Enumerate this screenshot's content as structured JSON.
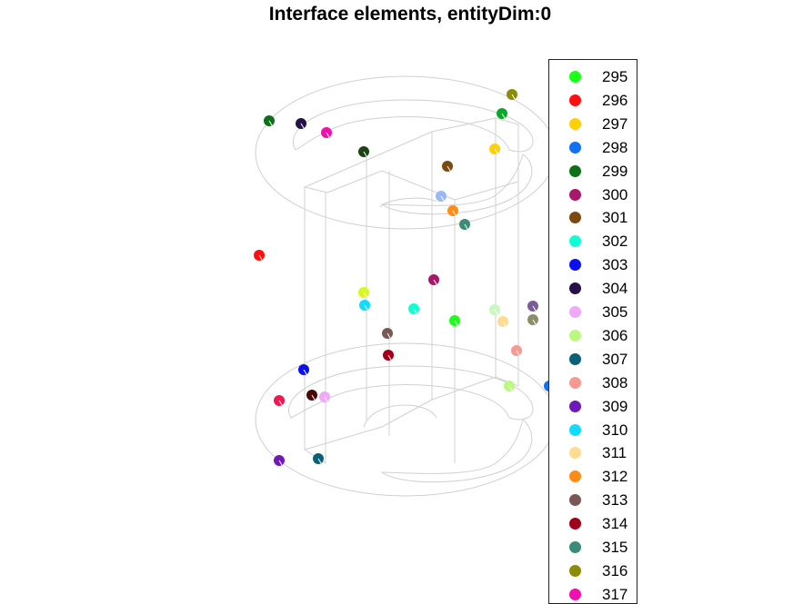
{
  "title": "Interface elements, entityDim:0",
  "legend": [
    {
      "label": "295",
      "color": "#19ff19"
    },
    {
      "label": "296",
      "color": "#ff1010"
    },
    {
      "label": "297",
      "color": "#ffd008"
    },
    {
      "label": "298",
      "color": "#1072f0"
    },
    {
      "label": "299",
      "color": "#0b7018"
    },
    {
      "label": "300",
      "color": "#a8186a"
    },
    {
      "label": "301",
      "color": "#7c4a0e"
    },
    {
      "label": "302",
      "color": "#10ffd2"
    },
    {
      "label": "303",
      "color": "#0a10f0"
    },
    {
      "label": "304",
      "color": "#261048"
    },
    {
      "label": "305",
      "color": "#f0a8f8"
    },
    {
      "label": "306",
      "color": "#bcf880"
    },
    {
      "label": "307",
      "color": "#0a6078"
    },
    {
      "label": "308",
      "color": "#f89890"
    },
    {
      "label": "309",
      "color": "#7018b8"
    },
    {
      "label": "310",
      "color": "#10dcff"
    },
    {
      "label": "311",
      "color": "#ffdc90"
    },
    {
      "label": "312",
      "color": "#ff8c18"
    },
    {
      "label": "313",
      "color": "#7a5858"
    },
    {
      "label": "314",
      "color": "#a0001a"
    },
    {
      "label": "315",
      "color": "#3a8c78"
    },
    {
      "label": "316",
      "color": "#8c8c08"
    },
    {
      "label": "317",
      "color": "#f010b0"
    }
  ],
  "points": [
    {
      "label": "295",
      "color": "#19ff19"
    },
    {
      "label": "296",
      "color": "#ff1010"
    },
    {
      "label": "297",
      "color": "#ffd008"
    },
    {
      "label": "298",
      "color": "#1072f0"
    },
    {
      "label": "299",
      "color": "#0b7018"
    },
    {
      "label": "300",
      "color": "#a8186a"
    },
    {
      "label": "301",
      "color": "#7c4a0e"
    },
    {
      "label": "302",
      "color": "#10ffd2"
    },
    {
      "label": "303",
      "color": "#0a10f0"
    },
    {
      "label": "304",
      "color": "#261048"
    },
    {
      "label": "305",
      "color": "#f0a8f8"
    },
    {
      "label": "306",
      "color": "#bcf880"
    },
    {
      "label": "307",
      "color": "#0a6078"
    },
    {
      "label": "308",
      "color": "#f89890"
    },
    {
      "label": "309",
      "color": "#7018b8"
    },
    {
      "label": "310",
      "color": "#10dcff"
    },
    {
      "label": "311",
      "color": "#ffdc90"
    },
    {
      "label": "312",
      "color": "#ff8c18"
    },
    {
      "label": "313",
      "color": "#7a5858"
    },
    {
      "label": "314",
      "color": "#a0001a"
    },
    {
      "label": "315",
      "color": "#3a8c78"
    },
    {
      "label": "316",
      "color": "#8c8c08"
    },
    {
      "label": "317",
      "color": "#f010b0"
    },
    {
      "label": "",
      "color": "#1e4218"
    },
    {
      "label": "",
      "color": "#98b8f8"
    },
    {
      "label": "",
      "color": "#08a828"
    },
    {
      "label": "",
      "color": "#d8f818"
    },
    {
      "label": "",
      "color": "#c8f8c0"
    },
    {
      "label": "",
      "color": "#7c5c98"
    },
    {
      "label": "",
      "color": "#8c8c68"
    },
    {
      "label": "",
      "color": "#480808"
    },
    {
      "label": "",
      "color": "#f01850"
    }
  ]
}
